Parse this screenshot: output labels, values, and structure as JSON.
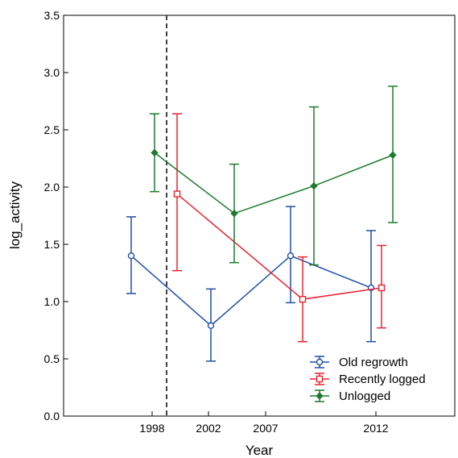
{
  "chart_data": {
    "type": "line",
    "title": "",
    "xlabel": "Year",
    "ylabel": "log_activity",
    "categories": [
      "1998",
      "2002",
      "2007",
      "2012"
    ],
    "ylim": [
      0.0,
      3.5
    ],
    "yticks": [
      "0.0",
      "0.5",
      "1.0",
      "1.5",
      "2.0",
      "2.5",
      "3.0",
      "3.5"
    ],
    "grid": false,
    "legend_position": "bottom-right",
    "reference_line": {
      "style": "dashed",
      "between": [
        "1998",
        "2002"
      ]
    },
    "series": [
      {
        "name": "Old regrowth",
        "color": "#1f4fa8",
        "marker": "circle",
        "values": [
          1.4,
          0.79,
          1.4,
          1.12
        ],
        "error_low": [
          1.07,
          0.48,
          0.99,
          0.65
        ],
        "error_high": [
          1.74,
          1.11,
          1.83,
          1.62
        ]
      },
      {
        "name": "Recently logged",
        "color": "#e8242f",
        "marker": "square",
        "values": [
          null,
          1.94,
          1.02,
          1.12
        ],
        "error_low": [
          null,
          1.27,
          0.65,
          0.77
        ],
        "error_high": [
          null,
          2.64,
          1.39,
          1.49
        ]
      },
      {
        "name": "Unlogged",
        "color": "#1e7b2e",
        "marker": "diamond",
        "values": [
          2.3,
          1.77,
          2.01,
          2.28
        ],
        "error_low": [
          1.96,
          1.34,
          1.32,
          1.69
        ],
        "error_high": [
          2.64,
          2.2,
          2.7,
          2.88
        ]
      }
    ]
  }
}
